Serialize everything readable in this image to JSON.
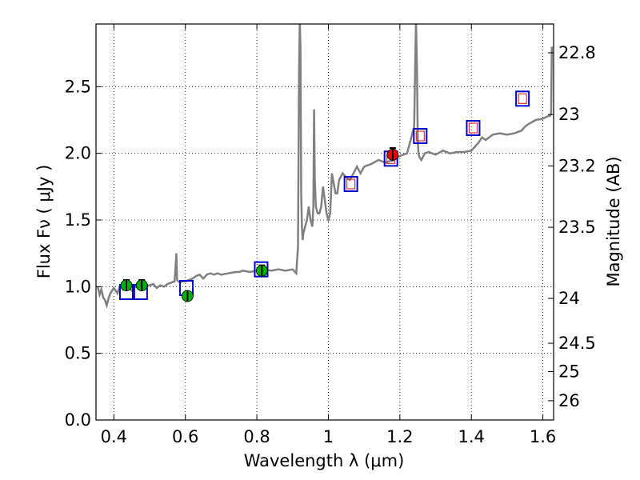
{
  "chart_data": {
    "type": "scatter",
    "title": "",
    "xlabel": "Wavelength  λ (μm)",
    "ylabel": "Flux  Fν  ( μJy )",
    "y2label": "Magnitude (AB)",
    "xlim": [
      0.35,
      1.63
    ],
    "ylim": [
      0.0,
      2.97
    ],
    "grid": true,
    "x_ticks": [
      0.4,
      0.6,
      0.8,
      1.0,
      1.2,
      1.4,
      1.6
    ],
    "x_tick_labels": [
      "0.4",
      "0.6",
      "0.8",
      "1",
      "1.2",
      "1.4",
      "1.6"
    ],
    "y_ticks": [
      0.0,
      0.5,
      1.0,
      1.5,
      2.0,
      2.5
    ],
    "y_tick_labels": [
      "0.0",
      "0.5",
      "1.0",
      "1.5",
      "2.0",
      "2.5"
    ],
    "y2_ticks": [
      {
        "value": 22.8,
        "label": "22.8"
      },
      {
        "value": 23.0,
        "label": "23"
      },
      {
        "value": 23.2,
        "label": "23.2"
      },
      {
        "value": 23.5,
        "label": "23.5"
      },
      {
        "value": 24.0,
        "label": "24"
      },
      {
        "value": 24.5,
        "label": "24.5"
      },
      {
        "value": 25.0,
        "label": "25"
      },
      {
        "value": 26.0,
        "label": "26"
      }
    ],
    "colors": {
      "spectrum": "#808080",
      "model_box": "#0000cc",
      "model_box_inner": "#cc3333",
      "green": "#00b000",
      "red": "#ee0000",
      "grid": "#000000"
    },
    "series": [
      {
        "name": "model spectrum",
        "kind": "line",
        "x": [
          0.355,
          0.36,
          0.365,
          0.37,
          0.375,
          0.38,
          0.385,
          0.39,
          0.395,
          0.4,
          0.405,
          0.41,
          0.415,
          0.42,
          0.425,
          0.43,
          0.44,
          0.45,
          0.46,
          0.47,
          0.48,
          0.49,
          0.5,
          0.51,
          0.52,
          0.53,
          0.54,
          0.55,
          0.56,
          0.57,
          0.575,
          0.577,
          0.58,
          0.585,
          0.59,
          0.6,
          0.62,
          0.63,
          0.64,
          0.65,
          0.66,
          0.67,
          0.68,
          0.69,
          0.7,
          0.72,
          0.74,
          0.75,
          0.76,
          0.78,
          0.8,
          0.82,
          0.84,
          0.86,
          0.88,
          0.9,
          0.91,
          0.915,
          0.918,
          0.92,
          0.922,
          0.924,
          0.926,
          0.928,
          0.93,
          0.935,
          0.94,
          0.945,
          0.95,
          0.955,
          0.958,
          0.96,
          0.962,
          0.965,
          0.97,
          0.975,
          0.98,
          0.985,
          0.99,
          0.995,
          1.0,
          1.005,
          1.01,
          1.02,
          1.025,
          1.03,
          1.04,
          1.05,
          1.06,
          1.07,
          1.08,
          1.09,
          1.1,
          1.12,
          1.14,
          1.16,
          1.18,
          1.2,
          1.22,
          1.23,
          1.24,
          1.245,
          1.248,
          1.25,
          1.252,
          1.255,
          1.26,
          1.27,
          1.28,
          1.3,
          1.32,
          1.34,
          1.36,
          1.38,
          1.4,
          1.41,
          1.42,
          1.43,
          1.44,
          1.46,
          1.48,
          1.5,
          1.52,
          1.54,
          1.55,
          1.56,
          1.58,
          1.6,
          1.615,
          1.62,
          1.623,
          1.625
        ],
        "y": [
          1.0,
          0.94,
          0.98,
          0.92,
          0.9,
          0.86,
          0.91,
          0.95,
          0.97,
          0.99,
          0.97,
          0.95,
          0.99,
          1.0,
          0.98,
          1.01,
          1.0,
          0.97,
          1.0,
          0.99,
          1.01,
          1.0,
          1.01,
          1.02,
          0.99,
          1.01,
          1.0,
          1.02,
          1.03,
          1.04,
          1.25,
          1.05,
          1.04,
          1.03,
          1.04,
          1.04,
          1.06,
          1.08,
          1.09,
          1.06,
          1.09,
          1.1,
          1.09,
          1.1,
          1.09,
          1.1,
          1.11,
          1.11,
          1.12,
          1.11,
          1.12,
          1.13,
          1.12,
          1.13,
          1.12,
          1.13,
          1.1,
          1.3,
          2.6,
          3.0,
          2.8,
          1.7,
          1.45,
          1.35,
          1.4,
          1.45,
          1.5,
          1.6,
          1.5,
          1.45,
          1.6,
          2.33,
          1.8,
          1.6,
          1.55,
          1.55,
          1.6,
          1.75,
          1.65,
          1.55,
          1.5,
          1.55,
          1.85,
          1.7,
          1.7,
          1.8,
          1.85,
          1.82,
          1.8,
          1.85,
          1.9,
          1.85,
          1.9,
          1.92,
          1.95,
          1.93,
          1.95,
          1.98,
          2.0,
          2.1,
          2.2,
          3.0,
          2.6,
          2.1,
          2.0,
          1.97,
          1.95,
          2.0,
          2.01,
          1.99,
          2.02,
          2.0,
          2.01,
          2.01,
          2.02,
          2.05,
          2.08,
          2.12,
          2.1,
          2.14,
          2.15,
          2.14,
          2.15,
          2.17,
          2.2,
          2.22,
          2.25,
          2.26,
          2.28,
          2.28,
          2.3,
          2.8
        ]
      },
      {
        "name": "model photometry",
        "kind": "open-square",
        "x": [
          0.435,
          0.475,
          0.603,
          0.812,
          1.063,
          1.175,
          1.257,
          1.405,
          1.543
        ],
        "y": [
          0.96,
          0.96,
          0.99,
          1.13,
          1.77,
          1.96,
          2.13,
          2.19,
          2.41
        ]
      },
      {
        "name": "observed (optical)",
        "kind": "filled-circle",
        "x": [
          0.435,
          0.478,
          0.606,
          0.814
        ],
        "y": [
          1.01,
          1.01,
          0.93,
          1.12
        ],
        "yerr": [
          0.04,
          0.04,
          0.03,
          0.04
        ]
      },
      {
        "name": "observed (near-IR)",
        "kind": "filled-circle",
        "x": [
          1.18
        ],
        "y": [
          1.99
        ],
        "yerr": [
          0.05
        ]
      }
    ]
  }
}
